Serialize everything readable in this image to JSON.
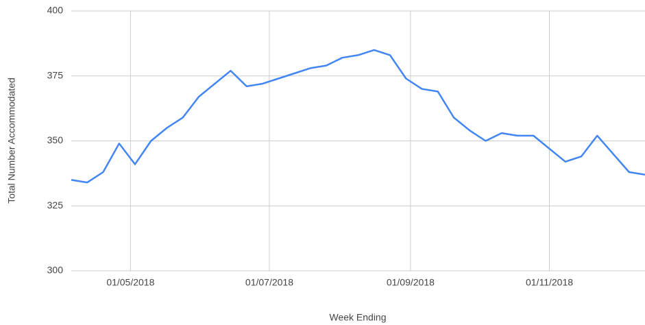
{
  "chart_data": {
    "type": "line",
    "x_label": "Week Ending",
    "y_label": "Total Number Accommodated",
    "x": [
      "05/04/2018",
      "12/04/2018",
      "19/04/2018",
      "26/04/2018",
      "03/05/2018",
      "10/05/2018",
      "17/05/2018",
      "24/05/2018",
      "31/05/2018",
      "07/06/2018",
      "14/06/2018",
      "21/06/2018",
      "28/06/2018",
      "05/07/2018",
      "12/07/2018",
      "19/07/2018",
      "26/07/2018",
      "02/08/2018",
      "09/08/2018",
      "16/08/2018",
      "23/08/2018",
      "30/08/2018",
      "06/09/2018",
      "13/09/2018",
      "20/09/2018",
      "27/09/2018",
      "04/10/2018",
      "11/10/2018",
      "18/10/2018",
      "25/10/2018",
      "01/11/2018",
      "08/11/2018",
      "15/11/2018",
      "22/11/2018",
      "29/11/2018",
      "06/12/2018",
      "13/12/2018"
    ],
    "series": [
      {
        "name": "Total Number Accommodated",
        "color": "#4285f4",
        "values": [
          335,
          334,
          338,
          349,
          341,
          350,
          355,
          359,
          367,
          372,
          377,
          371,
          372,
          374,
          376,
          378,
          379,
          382,
          383,
          385,
          383,
          374,
          370,
          369,
          359,
          354,
          350,
          353,
          352,
          352,
          347,
          342,
          344,
          352,
          345,
          338,
          337
        ]
      }
    ],
    "xlim": [
      "05/04/2018",
      "13/12/2018"
    ],
    "xticks": [
      "01/05/2018",
      "01/07/2018",
      "01/09/2018",
      "01/11/2018"
    ],
    "ylim": [
      300,
      400
    ],
    "yticks": [
      300,
      325,
      350,
      375,
      400
    ],
    "grid": true
  }
}
